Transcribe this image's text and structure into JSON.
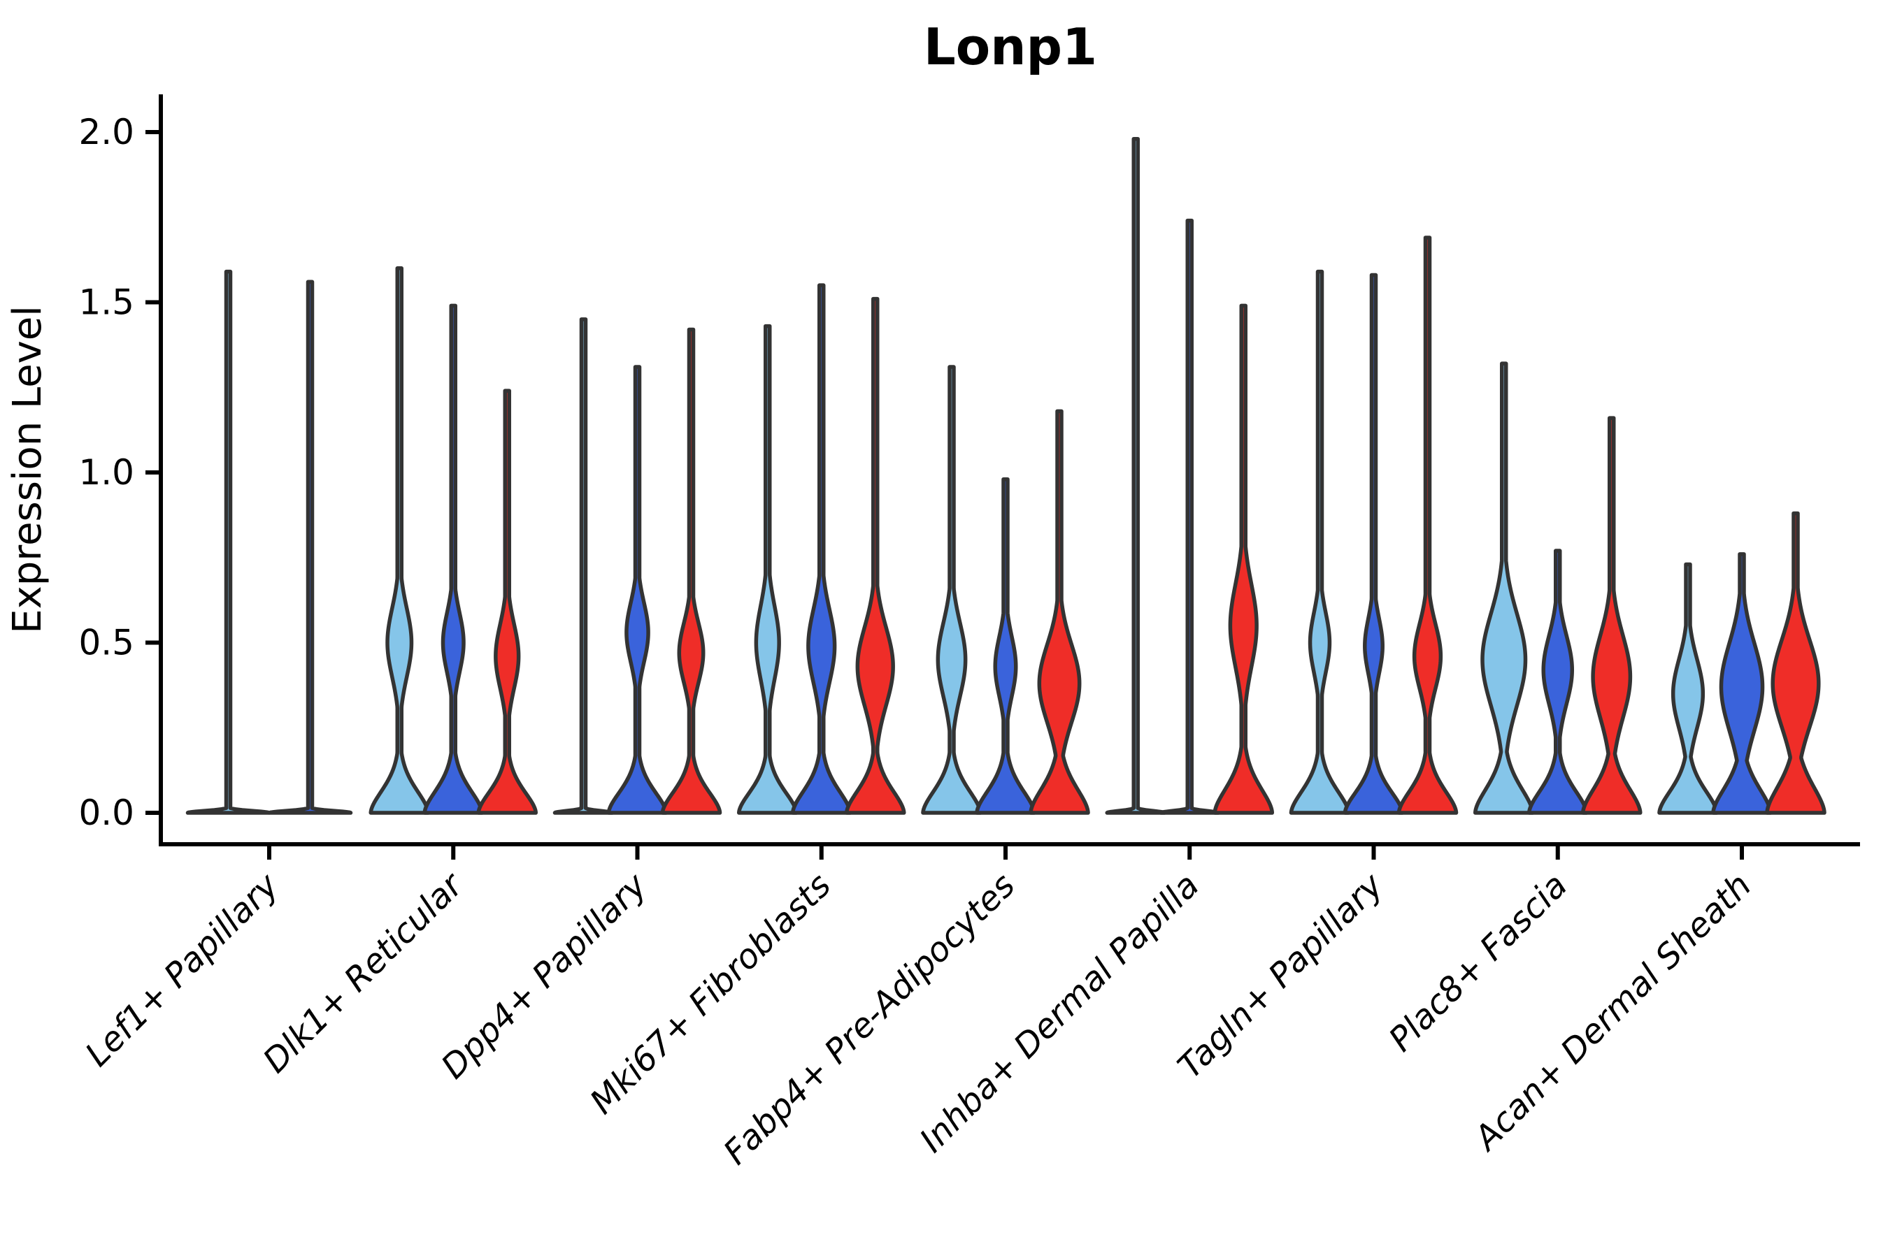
{
  "title": "Lonp1",
  "colors": {
    "light_blue": "#85C5E9",
    "dark_blue": "#3A63DB",
    "red": "#EF2D28",
    "outline": "#333333",
    "axis": "#000000"
  },
  "chart_data": {
    "type": "violin",
    "title": "Lonp1",
    "xlabel": "",
    "ylabel": "Expression Level",
    "ylim": [
      0.0,
      2.0
    ],
    "yticks": [
      0.0,
      0.5,
      1.0,
      1.5,
      2.0
    ],
    "ytick_labels": [
      "0.0",
      "0.5",
      "1.0",
      "1.5",
      "2.0"
    ],
    "grid": false,
    "legend": "none",
    "categories": [
      "Lef1+ Papillary",
      "Dlk1+ Reticular",
      "Dpp4+ Papillary",
      "Mki67+ Fibroblasts",
      "Fabp4+ Pre-Adipocytes",
      "Inhba+ Dermal Papilla",
      "Tagln+ Papillary",
      "Plac8+ Fascia",
      "Acan+ Dermal Sheath"
    ],
    "series_colors": [
      "light_blue",
      "dark_blue",
      "red"
    ],
    "groups": [
      {
        "category": "Lef1+ Papillary",
        "violins": [
          {
            "split": "light_blue",
            "max": 1.59,
            "flat": true
          },
          {
            "split": "dark_blue",
            "max": 1.56,
            "flat": true
          }
        ]
      },
      {
        "category": "Dlk1+ Reticular",
        "violins": [
          {
            "split": "light_blue",
            "max": 1.6,
            "flat": false,
            "bulge": {
              "center": 0.5,
              "height": 0.15,
              "width": 0.42
            },
            "base": {
              "height": 0.1
            }
          },
          {
            "split": "dark_blue",
            "max": 1.49,
            "flat": false,
            "bulge": {
              "center": 0.5,
              "height": 0.13,
              "width": 0.36
            },
            "base": {
              "height": 0.1
            }
          },
          {
            "split": "red",
            "max": 1.24,
            "flat": false,
            "bulge": {
              "center": 0.46,
              "height": 0.14,
              "width": 0.4
            },
            "base": {
              "height": 0.095
            }
          }
        ]
      },
      {
        "category": "Dpp4+ Papillary",
        "violins": [
          {
            "split": "light_blue",
            "max": 1.45,
            "flat": true
          },
          {
            "split": "dark_blue",
            "max": 1.31,
            "flat": false,
            "bulge": {
              "center": 0.53,
              "height": 0.13,
              "width": 0.38
            },
            "base": {
              "height": 0.095
            }
          },
          {
            "split": "red",
            "max": 1.42,
            "flat": false,
            "bulge": {
              "center": 0.47,
              "height": 0.13,
              "width": 0.42
            },
            "base": {
              "height": 0.095
            }
          }
        ]
      },
      {
        "category": "Mki67+ Fibroblasts",
        "violins": [
          {
            "split": "light_blue",
            "max": 1.43,
            "flat": false,
            "bulge": {
              "center": 0.5,
              "height": 0.16,
              "width": 0.4
            },
            "base": {
              "height": 0.095
            }
          },
          {
            "split": "dark_blue",
            "max": 1.55,
            "flat": false,
            "bulge": {
              "center": 0.49,
              "height": 0.16,
              "width": 0.46
            },
            "base": {
              "height": 0.1
            }
          },
          {
            "split": "red",
            "max": 1.51,
            "flat": false,
            "bulge": {
              "center": 0.43,
              "height": 0.17,
              "width": 0.62
            },
            "base": {
              "height": 0.1
            }
          }
        ]
      },
      {
        "category": "Fabp4+ Pre-Adipocytes",
        "violins": [
          {
            "split": "light_blue",
            "max": 1.31,
            "flat": false,
            "bulge": {
              "center": 0.45,
              "height": 0.16,
              "width": 0.48
            },
            "base": {
              "height": 0.1
            }
          },
          {
            "split": "dark_blue",
            "max": 0.98,
            "flat": false,
            "bulge": {
              "center": 0.43,
              "height": 0.13,
              "width": 0.36
            },
            "base": {
              "height": 0.1
            }
          },
          {
            "split": "red",
            "max": 1.18,
            "flat": false,
            "bulge": {
              "center": 0.38,
              "height": 0.17,
              "width": 0.7
            },
            "base": {
              "height": 0.11
            }
          }
        ]
      },
      {
        "category": "Inhba+ Dermal Papilla",
        "violins": [
          {
            "split": "light_blue",
            "max": 1.98,
            "flat": true
          },
          {
            "split": "dark_blue",
            "max": 1.74,
            "flat": true
          },
          {
            "split": "red",
            "max": 1.49,
            "flat": false,
            "bulge": {
              "center": 0.55,
              "height": 0.18,
              "width": 0.46
            },
            "base": {
              "height": 0.11
            }
          }
        ]
      },
      {
        "category": "Tagln+ Papillary",
        "violins": [
          {
            "split": "light_blue",
            "max": 1.59,
            "flat": false,
            "bulge": {
              "center": 0.5,
              "height": 0.13,
              "width": 0.34
            },
            "base": {
              "height": 0.1
            }
          },
          {
            "split": "dark_blue",
            "max": 1.58,
            "flat": false,
            "bulge": {
              "center": 0.49,
              "height": 0.12,
              "width": 0.31
            },
            "base": {
              "height": 0.095
            }
          },
          {
            "split": "red",
            "max": 1.69,
            "flat": false,
            "bulge": {
              "center": 0.46,
              "height": 0.14,
              "width": 0.46
            },
            "base": {
              "height": 0.1
            }
          }
        ]
      },
      {
        "category": "Plac8+ Fascia",
        "violins": [
          {
            "split": "light_blue",
            "max": 1.32,
            "flat": false,
            "bulge": {
              "center": 0.45,
              "height": 0.2,
              "width": 0.75
            },
            "base": {
              "height": 0.11
            }
          },
          {
            "split": "dark_blue",
            "max": 0.77,
            "flat": false,
            "bulge": {
              "center": 0.42,
              "height": 0.15,
              "width": 0.5
            },
            "base": {
              "height": 0.1
            }
          },
          {
            "split": "red",
            "max": 1.16,
            "flat": false,
            "bulge": {
              "center": 0.4,
              "height": 0.18,
              "width": 0.65
            },
            "base": {
              "height": 0.11
            }
          }
        ]
      },
      {
        "category": "Acan+ Dermal Sheath",
        "violins": [
          {
            "split": "light_blue",
            "max": 0.73,
            "flat": false,
            "bulge": {
              "center": 0.35,
              "height": 0.15,
              "width": 0.52
            },
            "base": {
              "height": 0.1
            }
          },
          {
            "split": "dark_blue",
            "max": 0.76,
            "flat": false,
            "bulge": {
              "center": 0.37,
              "height": 0.19,
              "width": 0.72
            },
            "base": {
              "height": 0.11
            }
          },
          {
            "split": "red",
            "max": 0.88,
            "flat": false,
            "bulge": {
              "center": 0.38,
              "height": 0.19,
              "width": 0.8
            },
            "base": {
              "height": 0.12
            }
          }
        ]
      }
    ]
  }
}
